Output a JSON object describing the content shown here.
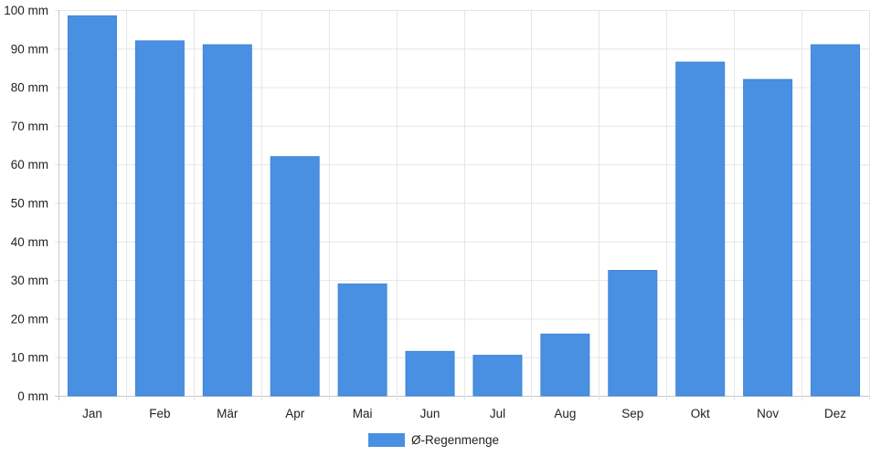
{
  "chart_data": {
    "type": "bar",
    "categories": [
      "Jan",
      "Feb",
      "Mär",
      "Apr",
      "Mai",
      "Jun",
      "Jul",
      "Aug",
      "Sep",
      "Okt",
      "Nov",
      "Dez"
    ],
    "series": [
      {
        "name": "Ø-Regenmenge",
        "color": "#4a90e2",
        "values": [
          98.5,
          92,
          91,
          62,
          29,
          11.5,
          10.5,
          16,
          32.5,
          86.5,
          82,
          91
        ]
      }
    ],
    "ylim": [
      0,
      100
    ],
    "yticks": [
      0,
      10,
      20,
      30,
      40,
      50,
      60,
      70,
      80,
      90,
      100
    ],
    "ytick_labels": [
      "0 mm",
      "10 mm",
      "20 mm",
      "30 mm",
      "40 mm",
      "50 mm",
      "60 mm",
      "70 mm",
      "80 mm",
      "90 mm",
      "100 mm"
    ],
    "grid": true,
    "legend_position": "bottom-center"
  }
}
